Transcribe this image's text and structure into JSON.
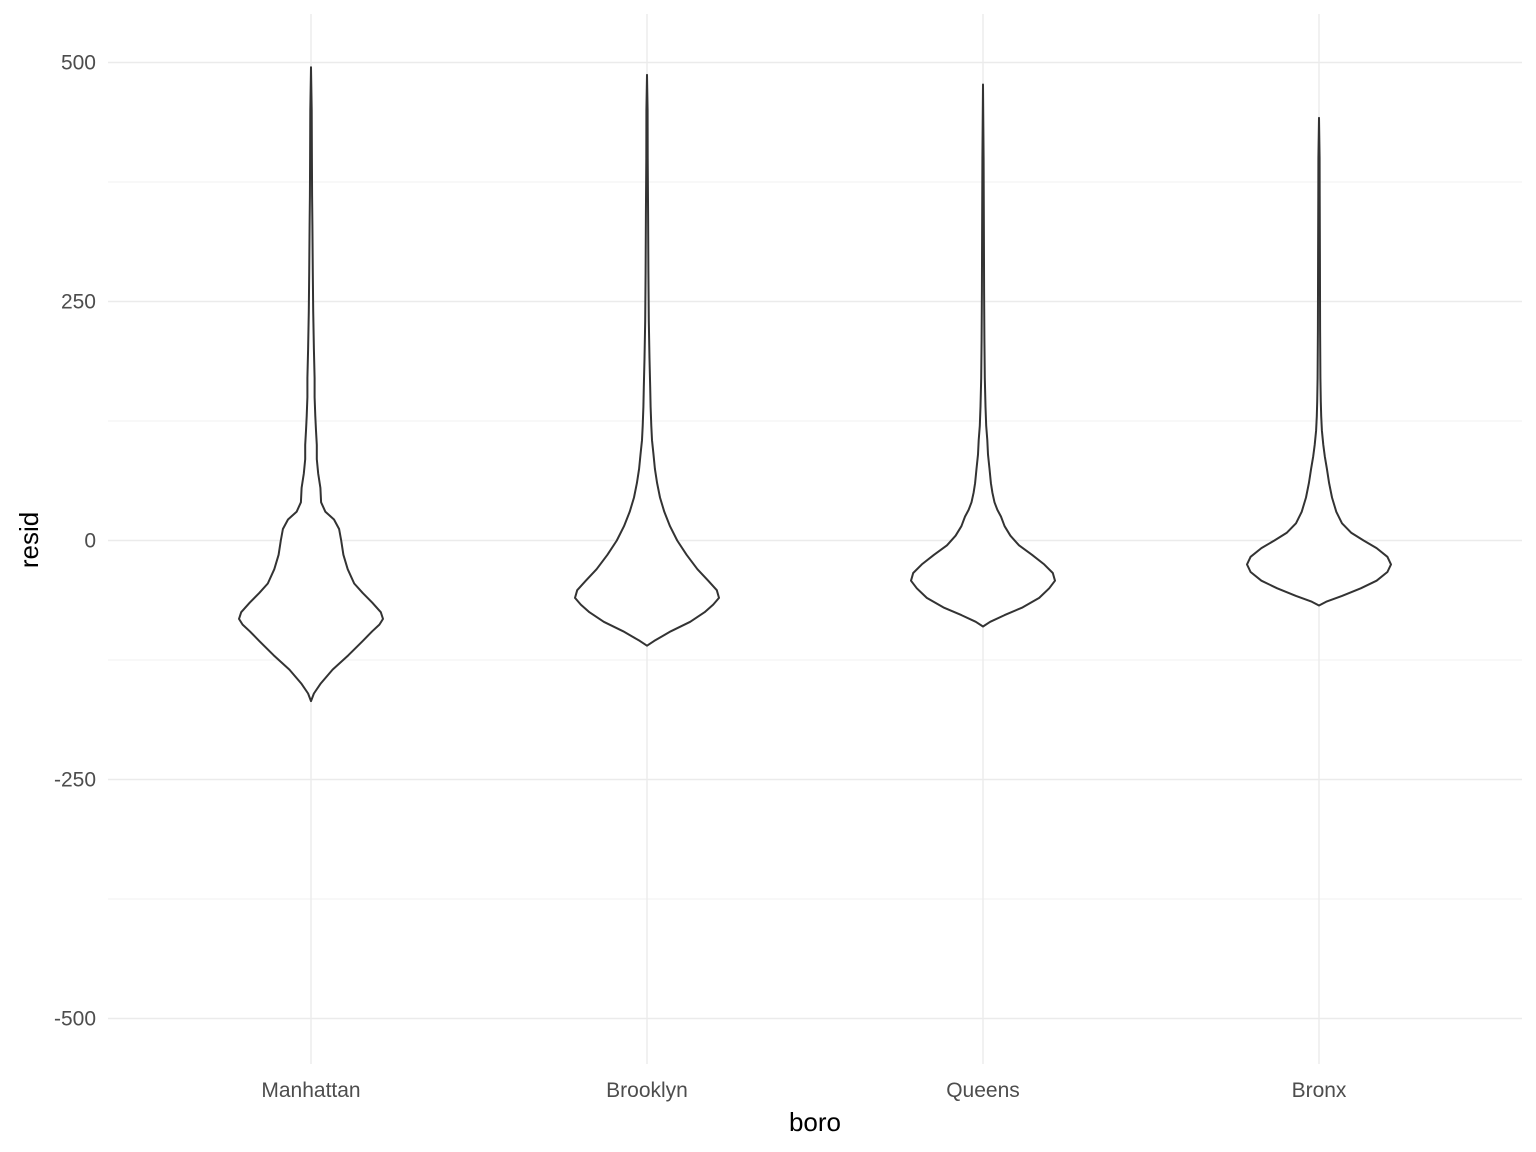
{
  "chart_data": {
    "type": "violin",
    "title": "",
    "xlabel": "boro",
    "ylabel": "resid",
    "ylim": [
      -550,
      500
    ],
    "yticks": [
      -500,
      -250,
      0,
      250,
      500
    ],
    "ytick_labels": [
      "-500",
      "-250",
      "0",
      "250",
      "500"
    ],
    "y_minor_ticks": [
      -375,
      -125,
      125,
      375
    ],
    "grid": true,
    "legend": "none",
    "theme": "minimal",
    "categories": [
      "Manhattan",
      "Brooklyn",
      "Queens",
      "Bronx"
    ],
    "series": [
      {
        "category": "Manhattan",
        "min": -168,
        "max": 495,
        "density_profile": [
          [
            -168,
            0
          ],
          [
            -160,
            0.04
          ],
          [
            -150,
            0.13
          ],
          [
            -135,
            0.3
          ],
          [
            -120,
            0.52
          ],
          [
            -105,
            0.72
          ],
          [
            -95,
            0.85
          ],
          [
            -88,
            0.95
          ],
          [
            -82,
            1.0
          ],
          [
            -75,
            0.97
          ],
          [
            -65,
            0.85
          ],
          [
            -55,
            0.72
          ],
          [
            -45,
            0.6
          ],
          [
            -30,
            0.51
          ],
          [
            -15,
            0.45
          ],
          [
            0,
            0.42
          ],
          [
            12,
            0.39
          ],
          [
            22,
            0.32
          ],
          [
            30,
            0.2
          ],
          [
            40,
            0.14
          ],
          [
            55,
            0.13
          ],
          [
            70,
            0.1
          ],
          [
            85,
            0.08
          ],
          [
            100,
            0.08
          ],
          [
            115,
            0.07
          ],
          [
            130,
            0.06
          ],
          [
            150,
            0.05
          ],
          [
            170,
            0.05
          ],
          [
            200,
            0.04
          ],
          [
            240,
            0.03
          ],
          [
            280,
            0.025
          ],
          [
            330,
            0.02
          ],
          [
            360,
            0.015
          ],
          [
            400,
            0.012
          ],
          [
            450,
            0.01
          ],
          [
            495,
            0
          ]
        ]
      },
      {
        "category": "Brooklyn",
        "min": -110,
        "max": 487,
        "density_profile": [
          [
            -110,
            0
          ],
          [
            -105,
            0.1
          ],
          [
            -95,
            0.33
          ],
          [
            -85,
            0.6
          ],
          [
            -75,
            0.8
          ],
          [
            -67,
            0.92
          ],
          [
            -60,
            1.0
          ],
          [
            -52,
            0.97
          ],
          [
            -42,
            0.85
          ],
          [
            -30,
            0.7
          ],
          [
            -15,
            0.55
          ],
          [
            0,
            0.42
          ],
          [
            15,
            0.32
          ],
          [
            30,
            0.24
          ],
          [
            45,
            0.18
          ],
          [
            60,
            0.14
          ],
          [
            75,
            0.11
          ],
          [
            90,
            0.09
          ],
          [
            105,
            0.07
          ],
          [
            120,
            0.06
          ],
          [
            140,
            0.05
          ],
          [
            160,
            0.045
          ],
          [
            190,
            0.035
          ],
          [
            230,
            0.025
          ],
          [
            280,
            0.02
          ],
          [
            340,
            0.015
          ],
          [
            400,
            0.01
          ],
          [
            450,
            0.008
          ],
          [
            487,
            0
          ]
        ]
      },
      {
        "category": "Queens",
        "min": -90,
        "max": 477,
        "density_profile": [
          [
            -90,
            0
          ],
          [
            -85,
            0.1
          ],
          [
            -78,
            0.3
          ],
          [
            -70,
            0.55
          ],
          [
            -60,
            0.78
          ],
          [
            -50,
            0.92
          ],
          [
            -42,
            1.0
          ],
          [
            -34,
            0.97
          ],
          [
            -25,
            0.85
          ],
          [
            -15,
            0.68
          ],
          [
            -5,
            0.5
          ],
          [
            5,
            0.38
          ],
          [
            15,
            0.3
          ],
          [
            25,
            0.25
          ],
          [
            32,
            0.2
          ],
          [
            40,
            0.16
          ],
          [
            50,
            0.13
          ],
          [
            60,
            0.11
          ],
          [
            75,
            0.09
          ],
          [
            90,
            0.07
          ],
          [
            105,
            0.06
          ],
          [
            120,
            0.045
          ],
          [
            140,
            0.035
          ],
          [
            170,
            0.025
          ],
          [
            210,
            0.02
          ],
          [
            260,
            0.015
          ],
          [
            320,
            0.012
          ],
          [
            400,
            0.008
          ],
          [
            477,
            0
          ]
        ]
      },
      {
        "category": "Bronx",
        "min": -68,
        "max": 442,
        "density_profile": [
          [
            -68,
            0
          ],
          [
            -64,
            0.1
          ],
          [
            -58,
            0.32
          ],
          [
            -50,
            0.58
          ],
          [
            -42,
            0.8
          ],
          [
            -33,
            0.95
          ],
          [
            -25,
            1.0
          ],
          [
            -17,
            0.95
          ],
          [
            -8,
            0.8
          ],
          [
            0,
            0.62
          ],
          [
            8,
            0.45
          ],
          [
            18,
            0.32
          ],
          [
            30,
            0.24
          ],
          [
            45,
            0.18
          ],
          [
            60,
            0.14
          ],
          [
            75,
            0.11
          ],
          [
            88,
            0.08
          ],
          [
            100,
            0.06
          ],
          [
            115,
            0.04
          ],
          [
            130,
            0.03
          ],
          [
            145,
            0.025
          ],
          [
            170,
            0.02
          ],
          [
            220,
            0.015
          ],
          [
            300,
            0.012
          ],
          [
            360,
            0.01
          ],
          [
            400,
            0.008
          ],
          [
            442,
            0
          ]
        ]
      }
    ]
  }
}
